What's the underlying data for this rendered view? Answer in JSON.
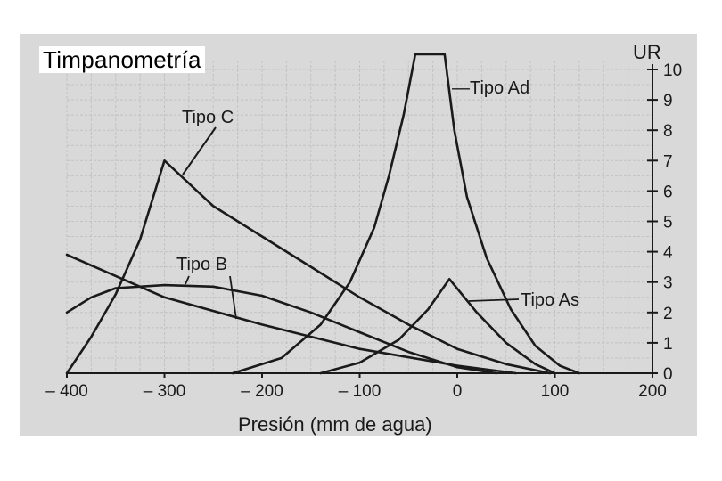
{
  "title": "Timpanometría",
  "chart_data": {
    "type": "line",
    "xlabel": "Presión (mm de agua)",
    "ylabel": "UR",
    "xlim": [
      -400,
      200
    ],
    "ylim": [
      0,
      10
    ],
    "grid": true,
    "x_ticks": [
      "– 400",
      "– 300",
      "– 200",
      "– 100",
      "0",
      "100",
      "200"
    ],
    "x_tick_values": [
      -400,
      -300,
      -200,
      -100,
      0,
      100,
      200
    ],
    "y_ticks": [
      "0",
      "1",
      "2",
      "3",
      "4",
      "5",
      "6",
      "7",
      "8",
      "9",
      "10"
    ],
    "y_tick_values": [
      0,
      1,
      2,
      3,
      4,
      5,
      6,
      7,
      8,
      9,
      10
    ],
    "series": [
      {
        "name": "Tipo Ad",
        "points": [
          [
            -230,
            0
          ],
          [
            -180,
            0.5
          ],
          [
            -140,
            1.6
          ],
          [
            -110,
            3.0
          ],
          [
            -85,
            4.8
          ],
          [
            -70,
            6.5
          ],
          [
            -55,
            8.5
          ],
          [
            -43,
            10.5
          ],
          [
            -13,
            10.5
          ],
          [
            -3,
            8.0
          ],
          [
            10,
            5.8
          ],
          [
            30,
            3.8
          ],
          [
            55,
            2.1
          ],
          [
            80,
            0.9
          ],
          [
            105,
            0.25
          ],
          [
            125,
            0
          ]
        ]
      },
      {
        "name": "Tipo C",
        "points": [
          [
            -400,
            0
          ],
          [
            -375,
            1.2
          ],
          [
            -350,
            2.6
          ],
          [
            -325,
            4.4
          ],
          [
            -300,
            7.0
          ],
          [
            -250,
            5.5
          ],
          [
            -200,
            4.5
          ],
          [
            -150,
            3.5
          ],
          [
            -100,
            2.5
          ],
          [
            -50,
            1.6
          ],
          [
            0,
            0.8
          ],
          [
            50,
            0.3
          ],
          [
            95,
            0
          ]
        ]
      },
      {
        "name": "Tipo B",
        "points": [
          [
            -400,
            2.0
          ],
          [
            -375,
            2.5
          ],
          [
            -350,
            2.8
          ],
          [
            -300,
            2.9
          ],
          [
            -250,
            2.85
          ],
          [
            -200,
            2.55
          ],
          [
            -150,
            2.0
          ],
          [
            -100,
            1.35
          ],
          [
            -50,
            0.7
          ],
          [
            0,
            0.2
          ],
          [
            40,
            0
          ]
        ]
      },
      {
        "name": "Tipo As",
        "points": [
          [
            -140,
            0
          ],
          [
            -100,
            0.35
          ],
          [
            -60,
            1.1
          ],
          [
            -30,
            2.1
          ],
          [
            -8,
            3.1
          ],
          [
            20,
            2.0
          ],
          [
            50,
            1.0
          ],
          [
            80,
            0.3
          ],
          [
            100,
            0
          ]
        ]
      },
      {
        "name": "",
        "points": [
          [
            -400,
            3.9
          ],
          [
            -300,
            2.5
          ],
          [
            -200,
            1.6
          ],
          [
            -100,
            0.8
          ],
          [
            0,
            0.25
          ],
          [
            60,
            0
          ]
        ]
      }
    ],
    "annotations": [
      {
        "text": "—Tipo Ad",
        "series": "Tipo Ad"
      },
      {
        "text": "Tipo C",
        "series": "Tipo C"
      },
      {
        "text": "Tipo B",
        "series": "Tipo B"
      },
      {
        "text": "Tipo As",
        "series": "Tipo As"
      }
    ]
  }
}
